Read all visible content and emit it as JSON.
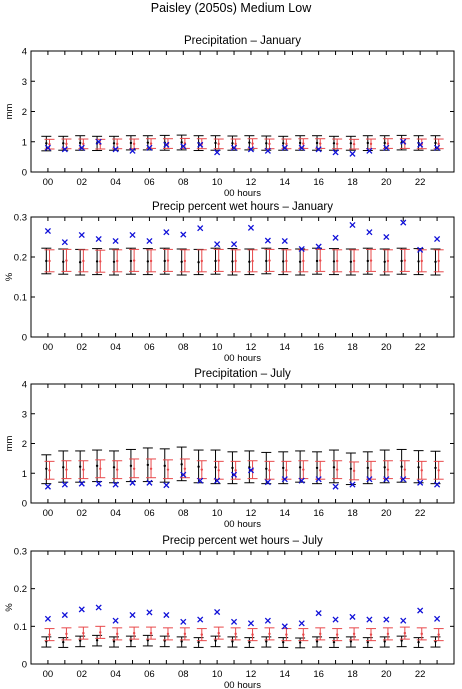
{
  "figure": {
    "title": "Paisley (2050s) Medium Low"
  },
  "colors": {
    "black": "#000000",
    "red": "#e8484a",
    "blue": "#1010d8"
  },
  "chart_data": [
    {
      "type": "errorbar",
      "title": "Precipitation – January",
      "xlabel": "00 hours",
      "ylabel": "mm",
      "ylim": [
        0,
        4
      ],
      "yticks": [
        0,
        1,
        2,
        3,
        4
      ],
      "xlim": [
        -1,
        24
      ],
      "xtick_labels": [
        "00",
        "02",
        "04",
        "06",
        "08",
        "10",
        "12",
        "14",
        "16",
        "18",
        "20",
        "22"
      ],
      "hours": [
        0,
        1,
        2,
        3,
        4,
        5,
        6,
        7,
        8,
        9,
        10,
        11,
        12,
        13,
        14,
        15,
        16,
        17,
        18,
        19,
        20,
        21,
        22,
        23
      ],
      "series": [
        {
          "kind": "errorbar",
          "color": "black",
          "mid": [
            0.95,
            0.95,
            0.96,
            0.95,
            0.95,
            0.96,
            0.97,
            0.97,
            0.98,
            0.96,
            0.96,
            0.95,
            0.97,
            0.95,
            0.95,
            0.96,
            0.96,
            0.95,
            0.95,
            0.96,
            0.96,
            0.97,
            0.96,
            0.96
          ],
          "low": [
            0.7,
            0.72,
            0.72,
            0.71,
            0.72,
            0.73,
            0.73,
            0.72,
            0.73,
            0.71,
            0.72,
            0.72,
            0.73,
            0.72,
            0.72,
            0.72,
            0.72,
            0.72,
            0.72,
            0.71,
            0.72,
            0.73,
            0.72,
            0.72
          ],
          "high": [
            1.18,
            1.18,
            1.2,
            1.18,
            1.18,
            1.2,
            1.2,
            1.21,
            1.22,
            1.2,
            1.2,
            1.19,
            1.2,
            1.19,
            1.18,
            1.2,
            1.2,
            1.18,
            1.18,
            1.2,
            1.2,
            1.21,
            1.2,
            1.2
          ]
        },
        {
          "kind": "errorbar",
          "color": "red",
          "mid": [
            0.92,
            0.93,
            0.93,
            0.92,
            0.93,
            0.93,
            0.94,
            0.94,
            0.95,
            0.94,
            0.93,
            0.93,
            0.94,
            0.93,
            0.93,
            0.94,
            0.94,
            0.93,
            0.92,
            0.93,
            0.94,
            0.94,
            0.93,
            0.93
          ],
          "low": [
            0.76,
            0.77,
            0.77,
            0.76,
            0.77,
            0.77,
            0.78,
            0.78,
            0.78,
            0.77,
            0.77,
            0.77,
            0.78,
            0.77,
            0.77,
            0.78,
            0.78,
            0.77,
            0.76,
            0.77,
            0.78,
            0.78,
            0.77,
            0.77
          ],
          "high": [
            1.08,
            1.09,
            1.09,
            1.08,
            1.09,
            1.09,
            1.1,
            1.1,
            1.11,
            1.1,
            1.09,
            1.09,
            1.1,
            1.09,
            1.09,
            1.1,
            1.1,
            1.09,
            1.08,
            1.09,
            1.1,
            1.1,
            1.09,
            1.09
          ]
        },
        {
          "kind": "marker",
          "color": "blue",
          "values": [
            0.8,
            0.75,
            0.8,
            1.0,
            0.75,
            0.7,
            0.8,
            0.9,
            0.85,
            0.9,
            0.65,
            0.8,
            0.75,
            0.7,
            0.8,
            0.8,
            0.75,
            0.65,
            0.6,
            0.7,
            0.8,
            1.0,
            0.9,
            0.8
          ]
        }
      ]
    },
    {
      "type": "errorbar",
      "title": "Precip percent wet hours – January",
      "xlabel": "00 hours",
      "ylabel": "%",
      "ylim": [
        0,
        0.3
      ],
      "yticks": [
        0,
        0.1,
        0.2,
        0.3
      ],
      "xlim": [
        -1,
        24
      ],
      "xtick_labels": [
        "00",
        "02",
        "04",
        "06",
        "08",
        "10",
        "12",
        "14",
        "16",
        "18",
        "20",
        "22"
      ],
      "hours": [
        0,
        1,
        2,
        3,
        4,
        5,
        6,
        7,
        8,
        9,
        10,
        11,
        12,
        13,
        14,
        15,
        16,
        17,
        18,
        19,
        20,
        21,
        22,
        23
      ],
      "series": [
        {
          "kind": "errorbar",
          "color": "black",
          "mid": [
            0.19,
            0.188,
            0.187,
            0.189,
            0.188,
            0.19,
            0.189,
            0.19,
            0.188,
            0.187,
            0.19,
            0.189,
            0.188,
            0.19,
            0.189,
            0.188,
            0.19,
            0.189,
            0.188,
            0.19,
            0.188,
            0.19,
            0.189,
            0.188
          ],
          "low": [
            0.158,
            0.157,
            0.155,
            0.156,
            0.155,
            0.157,
            0.156,
            0.157,
            0.155,
            0.156,
            0.157,
            0.155,
            0.156,
            0.158,
            0.156,
            0.155,
            0.157,
            0.156,
            0.155,
            0.157,
            0.155,
            0.157,
            0.156,
            0.155
          ],
          "high": [
            0.222,
            0.22,
            0.219,
            0.221,
            0.22,
            0.222,
            0.221,
            0.222,
            0.22,
            0.219,
            0.222,
            0.221,
            0.22,
            0.222,
            0.221,
            0.22,
            0.222,
            0.221,
            0.22,
            0.222,
            0.22,
            0.222,
            0.221,
            0.22
          ]
        },
        {
          "kind": "errorbar",
          "color": "red",
          "mid": [
            0.19,
            0.191,
            0.19,
            0.189,
            0.19,
            0.191,
            0.19,
            0.191,
            0.19,
            0.19,
            0.191,
            0.19,
            0.19,
            0.191,
            0.19,
            0.19,
            0.191,
            0.19,
            0.19,
            0.191,
            0.19,
            0.191,
            0.19,
            0.19
          ],
          "low": [
            0.163,
            0.164,
            0.163,
            0.162,
            0.163,
            0.164,
            0.163,
            0.164,
            0.163,
            0.163,
            0.164,
            0.163,
            0.163,
            0.164,
            0.163,
            0.163,
            0.164,
            0.163,
            0.163,
            0.164,
            0.163,
            0.164,
            0.163,
            0.163
          ],
          "high": [
            0.218,
            0.219,
            0.218,
            0.217,
            0.218,
            0.219,
            0.218,
            0.219,
            0.218,
            0.218,
            0.219,
            0.218,
            0.218,
            0.219,
            0.218,
            0.218,
            0.219,
            0.218,
            0.218,
            0.219,
            0.218,
            0.219,
            0.218,
            0.218
          ]
        },
        {
          "kind": "marker",
          "color": "blue",
          "values": [
            0.265,
            0.237,
            0.255,
            0.245,
            0.24,
            0.255,
            0.24,
            0.262,
            0.256,
            0.272,
            0.232,
            0.232,
            0.273,
            0.241,
            0.24,
            0.22,
            0.226,
            0.248,
            0.28,
            0.262,
            0.25,
            0.286,
            0.218,
            0.245
          ]
        }
      ]
    },
    {
      "type": "errorbar",
      "title": "Precipitation – July",
      "xlabel": "00 hours",
      "ylabel": "mm",
      "ylim": [
        0,
        4
      ],
      "yticks": [
        0,
        1,
        2,
        3,
        4
      ],
      "xlim": [
        -1,
        24
      ],
      "xtick_labels": [
        "00",
        "02",
        "04",
        "06",
        "08",
        "10",
        "12",
        "14",
        "16",
        "18",
        "20",
        "22"
      ],
      "hours": [
        0,
        1,
        2,
        3,
        4,
        5,
        6,
        7,
        8,
        9,
        10,
        11,
        12,
        13,
        14,
        15,
        16,
        17,
        18,
        19,
        20,
        21,
        22,
        23
      ],
      "series": [
        {
          "kind": "errorbar",
          "color": "black",
          "mid": [
            1.15,
            1.2,
            1.22,
            1.25,
            1.2,
            1.25,
            1.28,
            1.25,
            1.3,
            1.22,
            1.2,
            1.18,
            1.2,
            1.15,
            1.18,
            1.2,
            1.18,
            1.2,
            1.15,
            1.18,
            1.2,
            1.22,
            1.2,
            1.18
          ],
          "low": [
            0.65,
            0.7,
            0.7,
            0.72,
            0.68,
            0.72,
            0.72,
            0.7,
            0.75,
            0.68,
            0.65,
            0.65,
            0.68,
            0.65,
            0.65,
            0.7,
            0.65,
            0.68,
            0.62,
            0.65,
            0.68,
            0.7,
            0.68,
            0.65
          ],
          "high": [
            1.62,
            1.75,
            1.75,
            1.78,
            1.75,
            1.8,
            1.85,
            1.82,
            1.88,
            1.78,
            1.78,
            1.72,
            1.75,
            1.7,
            1.72,
            1.75,
            1.72,
            1.78,
            1.68,
            1.72,
            1.78,
            1.8,
            1.76,
            1.74
          ]
        },
        {
          "kind": "errorbar",
          "color": "red",
          "mid": [
            1.1,
            1.12,
            1.12,
            1.15,
            1.12,
            1.15,
            1.15,
            1.12,
            1.15,
            1.12,
            1.1,
            1.1,
            1.12,
            1.1,
            1.1,
            1.12,
            1.1,
            1.12,
            1.08,
            1.1,
            1.12,
            1.12,
            1.1,
            1.1
          ],
          "low": [
            0.8,
            0.82,
            0.82,
            0.85,
            0.82,
            0.85,
            0.85,
            0.82,
            0.85,
            0.82,
            0.8,
            0.8,
            0.82,
            0.8,
            0.8,
            0.82,
            0.8,
            0.82,
            0.78,
            0.8,
            0.82,
            0.82,
            0.8,
            0.8
          ],
          "high": [
            1.4,
            1.42,
            1.42,
            1.45,
            1.42,
            1.48,
            1.48,
            1.45,
            1.48,
            1.42,
            1.4,
            1.4,
            1.42,
            1.4,
            1.4,
            1.42,
            1.4,
            1.42,
            1.38,
            1.4,
            1.42,
            1.42,
            1.4,
            1.4
          ]
        },
        {
          "kind": "marker",
          "color": "blue",
          "values": [
            0.55,
            0.62,
            0.65,
            0.65,
            0.62,
            0.68,
            0.68,
            0.6,
            0.95,
            0.75,
            0.75,
            0.95,
            1.1,
            0.7,
            0.8,
            0.75,
            0.8,
            0.55,
            0.62,
            0.8,
            0.8,
            0.8,
            0.68,
            0.62
          ]
        }
      ]
    },
    {
      "type": "errorbar",
      "title": "Precip percent wet hours – July",
      "xlabel": "00 hours",
      "ylabel": "%",
      "ylim": [
        0,
        0.3
      ],
      "yticks": [
        0,
        0.1,
        0.2,
        0.3
      ],
      "xlim": [
        -1,
        24
      ],
      "xtick_labels": [
        "00",
        "02",
        "04",
        "06",
        "08",
        "10",
        "12",
        "14",
        "16",
        "18",
        "20",
        "22"
      ],
      "hours": [
        0,
        1,
        2,
        3,
        4,
        5,
        6,
        7,
        8,
        9,
        10,
        11,
        12,
        13,
        14,
        15,
        16,
        17,
        18,
        19,
        20,
        21,
        22,
        23
      ],
      "series": [
        {
          "kind": "errorbar",
          "color": "black",
          "mid": [
            0.06,
            0.058,
            0.062,
            0.063,
            0.06,
            0.062,
            0.063,
            0.062,
            0.06,
            0.058,
            0.062,
            0.06,
            0.058,
            0.06,
            0.058,
            0.057,
            0.06,
            0.058,
            0.06,
            0.058,
            0.06,
            0.062,
            0.058,
            0.06
          ],
          "low": [
            0.045,
            0.044,
            0.046,
            0.048,
            0.045,
            0.046,
            0.048,
            0.046,
            0.045,
            0.044,
            0.046,
            0.045,
            0.044,
            0.045,
            0.044,
            0.043,
            0.045,
            0.044,
            0.045,
            0.044,
            0.045,
            0.046,
            0.044,
            0.045
          ],
          "high": [
            0.072,
            0.07,
            0.074,
            0.076,
            0.072,
            0.074,
            0.076,
            0.074,
            0.072,
            0.07,
            0.074,
            0.072,
            0.07,
            0.072,
            0.07,
            0.069,
            0.072,
            0.07,
            0.072,
            0.07,
            0.072,
            0.074,
            0.07,
            0.072
          ]
        },
        {
          "kind": "errorbar",
          "color": "red",
          "mid": [
            0.078,
            0.08,
            0.082,
            0.084,
            0.08,
            0.082,
            0.082,
            0.08,
            0.08,
            0.078,
            0.082,
            0.08,
            0.078,
            0.08,
            0.078,
            0.078,
            0.08,
            0.078,
            0.08,
            0.078,
            0.08,
            0.082,
            0.08,
            0.078
          ],
          "low": [
            0.062,
            0.064,
            0.066,
            0.068,
            0.064,
            0.066,
            0.066,
            0.064,
            0.064,
            0.062,
            0.066,
            0.064,
            0.062,
            0.064,
            0.062,
            0.062,
            0.064,
            0.062,
            0.064,
            0.062,
            0.064,
            0.066,
            0.064,
            0.062
          ],
          "high": [
            0.094,
            0.096,
            0.098,
            0.1,
            0.096,
            0.098,
            0.098,
            0.096,
            0.096,
            0.094,
            0.098,
            0.096,
            0.094,
            0.096,
            0.094,
            0.094,
            0.096,
            0.094,
            0.096,
            0.094,
            0.096,
            0.098,
            0.096,
            0.094
          ]
        },
        {
          "kind": "marker",
          "color": "blue",
          "values": [
            0.12,
            0.13,
            0.145,
            0.15,
            0.115,
            0.13,
            0.137,
            0.13,
            0.112,
            0.118,
            0.138,
            0.112,
            0.108,
            0.115,
            0.1,
            0.108,
            0.135,
            0.118,
            0.125,
            0.118,
            0.118,
            0.115,
            0.142,
            0.12
          ]
        }
      ]
    }
  ]
}
